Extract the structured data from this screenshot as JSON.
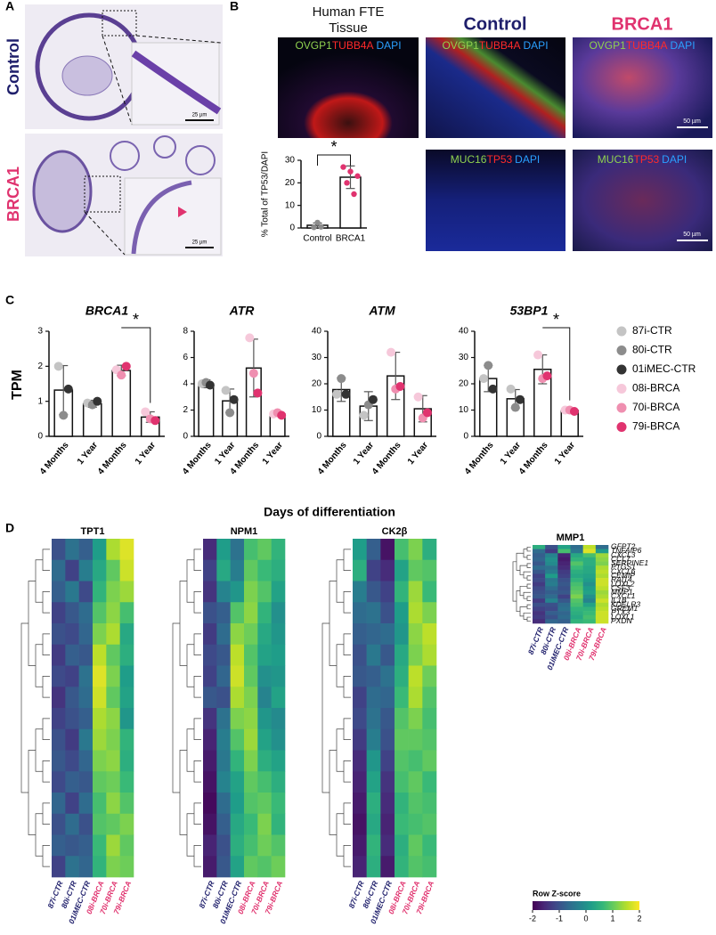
{
  "panel_a": {
    "letter": "A",
    "rows": [
      {
        "label": "Control",
        "color": "#1f1f6b"
      },
      {
        "label": "BRCA1",
        "color": "#e0336f"
      }
    ],
    "scale_bar": "25 µm"
  },
  "panel_b": {
    "letter": "B",
    "columns": [
      {
        "title": "Human FTE",
        "subtitle": "Tissue",
        "color": "#111111"
      },
      {
        "title": "Control",
        "color": "#1f1f6b"
      },
      {
        "title": "BRCA1",
        "color": "#e0336f"
      }
    ],
    "stain_rows": [
      [
        {
          "name": "OVGP1",
          "color": "#8fd14f"
        },
        {
          "name": "TUBB4A",
          "color": "#ff2a2a"
        },
        {
          "name": "DAPI",
          "color": "#2aa0ff"
        }
      ],
      [
        {
          "name": "MUC16",
          "color": "#8fd14f"
        },
        {
          "name": "TP53",
          "color": "#ff2a2a"
        },
        {
          "name": "DAPI",
          "color": "#2aa0ff"
        }
      ]
    ],
    "scale_bar": "50 µm",
    "chart": {
      "type": "bar",
      "y_label": "% Total of  TP53/DAPI",
      "categories": [
        "Control",
        "BRCA1"
      ],
      "values": [
        1.2,
        22.5
      ],
      "errors": [
        1.0,
        5.0
      ],
      "points": [
        [
          0.3,
          2.4,
          0.5
        ],
        [
          27,
          20,
          25,
          15,
          23
        ]
      ],
      "point_colors": [
        "#8c8c8c",
        "#e0336f"
      ],
      "ylim": [
        0,
        30
      ],
      "yticks": [
        0,
        10,
        20,
        30
      ],
      "significance": "*"
    }
  },
  "panel_c": {
    "letter": "C",
    "y_label": "TPM",
    "x_label": "Days of differentiation",
    "legend": [
      {
        "name": "87i-CTR",
        "color": "#c4c4c4"
      },
      {
        "name": "80i-CTR",
        "color": "#8c8c8c"
      },
      {
        "name": "01iMEC-CTR",
        "color": "#333333"
      },
      {
        "name": "08i-BRCA",
        "color": "#f6c8da"
      },
      {
        "name": "70i-BRCA",
        "color": "#ef8fb0"
      },
      {
        "name": "79i-BRCA",
        "color": "#e0336f"
      }
    ],
    "charts": [
      {
        "type": "bar",
        "title": "BRCA1",
        "categories": [
          "4 Months",
          "1 Year",
          "4 Months",
          "1 Year"
        ],
        "values": [
          1.32,
          0.93,
          1.88,
          0.55
        ],
        "errors": [
          0.7,
          0.1,
          0.15,
          0.15
        ],
        "points": [
          [
            2.0,
            0.95,
            null,
            null
          ],
          [
            0.6,
            0.9,
            null,
            null
          ],
          [
            1.35,
            1.0,
            null,
            null
          ],
          [
            null,
            null,
            1.9,
            0.7
          ],
          [
            null,
            null,
            1.75,
            0.5
          ],
          [
            null,
            null,
            2.0,
            0.45
          ]
        ],
        "ylim": [
          0,
          3
        ],
        "yticks": [
          0,
          1,
          2,
          3
        ],
        "significance": "*"
      },
      {
        "type": "bar",
        "title": "ATR",
        "categories": [
          "4 Months",
          "1 Year",
          "4 Months",
          "1 Year"
        ],
        "values": [
          4.0,
          2.7,
          5.2,
          1.7
        ],
        "errors": [
          0.3,
          0.9,
          2.2,
          0.15
        ],
        "points": [
          [
            4.0,
            3.5,
            null,
            null
          ],
          [
            4.1,
            1.8,
            null,
            null
          ],
          [
            3.9,
            2.8,
            null,
            null
          ],
          [
            null,
            null,
            7.5,
            1.7
          ],
          [
            null,
            null,
            4.8,
            1.8
          ],
          [
            null,
            null,
            3.3,
            1.6
          ]
        ],
        "ylim": [
          0,
          8
        ],
        "yticks": [
          0,
          2,
          4,
          6,
          8
        ]
      },
      {
        "type": "bar",
        "title": "ATM",
        "categories": [
          "4 Months",
          "1 Year",
          "4 Months",
          "1 Year"
        ],
        "values": [
          17.8,
          11.5,
          23,
          10.5
        ],
        "errors": [
          4.5,
          5.5,
          9,
          5
        ],
        "points": [
          [
            16,
            8,
            null,
            null
          ],
          [
            22,
            12,
            null,
            null
          ],
          [
            16,
            14,
            null,
            null
          ],
          [
            null,
            null,
            32,
            15
          ],
          [
            null,
            null,
            18,
            7
          ],
          [
            null,
            null,
            19,
            9
          ]
        ],
        "ylim": [
          0,
          40
        ],
        "yticks": [
          0,
          10,
          20,
          30,
          40
        ]
      },
      {
        "type": "bar",
        "title": "53BP1",
        "categories": [
          "4 Months",
          "1 Year",
          "4 Months",
          "1 Year"
        ],
        "values": [
          22,
          14.3,
          25.5,
          9.8
        ],
        "errors": [
          5,
          3.5,
          5.5,
          0.5
        ],
        "points": [
          [
            22,
            18,
            null,
            null
          ],
          [
            27,
            11,
            null,
            null
          ],
          [
            18,
            14,
            null,
            null
          ],
          [
            null,
            null,
            31,
            10
          ],
          [
            null,
            null,
            22,
            10
          ],
          [
            null,
            null,
            23,
            9.5
          ]
        ],
        "ylim": [
          0,
          40
        ],
        "yticks": [
          0,
          10,
          20,
          30,
          40
        ],
        "significance": "*"
      }
    ]
  },
  "panel_d": {
    "letter": "D",
    "columns": [
      {
        "name": "87i-CTR",
        "color": "#1f1f6b"
      },
      {
        "name": "80i-CTR",
        "color": "#1f1f6b"
      },
      {
        "name": "01iMEC-CTR",
        "color": "#1f1f6b"
      },
      {
        "name": "08i-BRCA",
        "color": "#e0336f"
      },
      {
        "name": "70i-BRCA",
        "color": "#e0336f"
      },
      {
        "name": "79i-BRCA",
        "color": "#e0336f"
      }
    ],
    "colorbar": {
      "title": "Row Z-score",
      "lim": [
        -2,
        2
      ],
      "ticks": [
        -2,
        -1,
        0,
        1,
        2
      ]
    },
    "heatmaps": [
      {
        "type": "heatmap",
        "title": "TPT1",
        "values": [
          [
            -1.0,
            -0.5,
            -0.8,
            0.2,
            1.5,
            1.8
          ],
          [
            -0.6,
            -1.2,
            -0.3,
            0.4,
            1.0,
            1.7
          ],
          [
            -0.8,
            -0.4,
            -1.1,
            0.6,
            1.2,
            1.4
          ],
          [
            -1.2,
            -0.9,
            -0.6,
            0.9,
            1.3,
            0.8
          ],
          [
            -1.0,
            -1.1,
            -0.7,
            1.2,
            1.5,
            0.4
          ],
          [
            -1.3,
            -0.8,
            -0.9,
            1.6,
            1.0,
            0.5
          ],
          [
            -1.1,
            -1.2,
            -0.5,
            1.8,
            1.2,
            0.2
          ],
          [
            -1.4,
            -0.9,
            -0.6,
            1.7,
            1.0,
            0.3
          ],
          [
            -1.2,
            -1.0,
            -0.8,
            1.5,
            1.3,
            0.1
          ],
          [
            -1.0,
            -1.3,
            -0.4,
            1.4,
            1.2,
            0.6
          ],
          [
            -0.9,
            -1.1,
            -0.7,
            1.2,
            1.3,
            0.5
          ],
          [
            -1.1,
            -0.8,
            -0.9,
            1.0,
            1.1,
            0.7
          ],
          [
            -0.7,
            -1.2,
            -0.6,
            0.8,
            1.3,
            0.9
          ],
          [
            -1.0,
            -0.6,
            -1.0,
            0.9,
            1.0,
            1.2
          ],
          [
            -0.8,
            -0.9,
            -0.8,
            0.7,
            1.4,
            1.0
          ],
          [
            -1.2,
            -0.5,
            -0.7,
            0.6,
            1.2,
            1.1
          ]
        ]
      },
      {
        "type": "heatmap",
        "title": "NPM1",
        "values": [
          [
            -1.5,
            0.2,
            -0.5,
            0.8,
            1.0,
            0.6
          ],
          [
            -1.2,
            0.4,
            -0.3,
            1.0,
            0.7,
            0.5
          ],
          [
            -1.4,
            -0.2,
            0.1,
            1.2,
            0.9,
            0.3
          ],
          [
            -1.0,
            -0.8,
            0.9,
            1.3,
            0.6,
            0.0
          ],
          [
            -1.3,
            -0.6,
            1.3,
            1.1,
            0.4,
            0.1
          ],
          [
            -1.1,
            -0.9,
            1.6,
            0.9,
            0.3,
            0.2
          ],
          [
            -1.2,
            -0.7,
            1.7,
            1.0,
            0.0,
            0.1
          ],
          [
            -0.9,
            -1.0,
            1.5,
            1.2,
            -0.2,
            0.3
          ],
          [
            -1.4,
            -0.5,
            1.2,
            1.3,
            0.1,
            -0.1
          ],
          [
            -1.6,
            -0.3,
            0.9,
            1.4,
            0.3,
            0.0
          ],
          [
            -1.7,
            -0.4,
            0.6,
            1.2,
            0.5,
            0.3
          ],
          [
            -1.8,
            -0.2,
            0.3,
            1.0,
            0.8,
            0.5
          ],
          [
            -1.9,
            -0.6,
            0.2,
            0.9,
            1.0,
            0.7
          ],
          [
            -1.8,
            -0.8,
            0.4,
            0.7,
            1.2,
            0.6
          ],
          [
            -1.6,
            -1.0,
            0.5,
            0.8,
            1.1,
            0.9
          ],
          [
            -1.7,
            -0.9,
            0.3,
            1.0,
            0.9,
            1.1
          ]
        ]
      },
      {
        "type": "heatmap",
        "title": "CK2β",
        "values": [
          [
            0.2,
            -0.8,
            -1.8,
            0.8,
            1.2,
            0.5
          ],
          [
            0.5,
            -1.2,
            -1.5,
            0.3,
            1.0,
            0.9
          ],
          [
            -0.3,
            -0.9,
            -1.2,
            0.6,
            1.4,
            0.7
          ],
          [
            -0.6,
            -0.5,
            -1.0,
            0.2,
            1.5,
            1.2
          ],
          [
            -0.8,
            -0.7,
            -0.6,
            0.1,
            1.3,
            1.6
          ],
          [
            -1.0,
            -0.4,
            -0.9,
            0.4,
            1.2,
            1.5
          ],
          [
            -0.9,
            -0.8,
            -0.5,
            0.5,
            1.6,
            1.1
          ],
          [
            -1.2,
            -0.6,
            -0.7,
            0.7,
            1.5,
            0.9
          ],
          [
            -1.1,
            -0.5,
            -0.9,
            0.9,
            1.2,
            0.8
          ],
          [
            -1.3,
            -0.3,
            -1.0,
            1.0,
            1.0,
            0.9
          ],
          [
            -1.5,
            0.1,
            -1.2,
            0.9,
            0.8,
            1.0
          ],
          [
            -1.6,
            0.3,
            -1.4,
            0.8,
            1.0,
            0.7
          ],
          [
            -1.7,
            0.5,
            -1.5,
            0.6,
            0.9,
            0.8
          ],
          [
            -1.8,
            0.4,
            -1.6,
            0.7,
            0.8,
            0.9
          ],
          [
            -1.7,
            0.6,
            -1.5,
            0.5,
            1.0,
            0.7
          ],
          [
            -1.6,
            0.5,
            -1.7,
            0.6,
            0.9,
            0.8
          ]
        ]
      },
      {
        "type": "heatmap",
        "title": "MMP1",
        "rows": [
          "GFPT2",
          "TNFAIP6",
          "CXCL3",
          "CCL7",
          "SERPINE1",
          "PTGS1",
          "CXCL6",
          "CEMIP",
          "RAI14",
          "LOXL2",
          "CSF3",
          "MMP1",
          "CXCL1",
          "IL1B",
          "KDELR3",
          "GREM1",
          "PTX3",
          "LOXL1",
          "PXDN"
        ],
        "values": [
          [
            0.5,
            -1.0,
            0.3,
            -0.6,
            1.6,
            -0.6
          ],
          [
            -0.6,
            -1.3,
            0.8,
            -0.4,
            1.8,
            0.2
          ],
          [
            -0.8,
            -0.2,
            -1.6,
            0.4,
            0.8,
            1.4
          ],
          [
            -0.7,
            0.0,
            -1.7,
            0.6,
            0.5,
            1.3
          ],
          [
            -0.9,
            -0.1,
            -1.6,
            0.9,
            0.5,
            1.2
          ],
          [
            -0.6,
            -0.5,
            -1.5,
            0.7,
            0.4,
            1.5
          ],
          [
            -0.9,
            -0.3,
            -1.3,
            0.5,
            0.4,
            1.6
          ],
          [
            -1.2,
            0.2,
            -1.2,
            0.4,
            0.3,
            1.5
          ],
          [
            -1.1,
            -0.4,
            -1.0,
            0.6,
            0.2,
            1.7
          ],
          [
            -1.3,
            -0.3,
            -0.9,
            0.8,
            0.0,
            1.7
          ],
          [
            -1.1,
            -0.6,
            -1.0,
            0.9,
            0.2,
            1.6
          ],
          [
            -1.0,
            -0.8,
            -0.9,
            1.0,
            0.3,
            1.4
          ],
          [
            -0.9,
            -0.6,
            -1.2,
            1.2,
            0.0,
            1.5
          ],
          [
            -1.3,
            -0.2,
            -0.9,
            0.9,
            -0.2,
            1.7
          ],
          [
            -1.0,
            -1.0,
            -0.6,
            0.8,
            0.3,
            1.5
          ],
          [
            -1.2,
            -1.1,
            -0.5,
            0.6,
            0.6,
            1.6
          ],
          [
            -1.4,
            -0.8,
            -0.7,
            0.5,
            0.7,
            1.7
          ],
          [
            -1.3,
            -1.0,
            -0.6,
            0.4,
            0.8,
            1.7
          ],
          [
            -1.5,
            -0.7,
            -0.8,
            0.6,
            0.7,
            1.7
          ]
        ]
      }
    ]
  }
}
